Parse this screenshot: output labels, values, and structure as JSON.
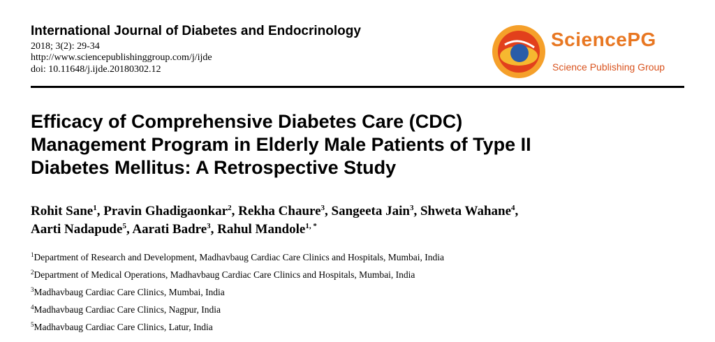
{
  "journal": {
    "title": "International Journal of Diabetes and Endocrinology",
    "issue": "2018; 3(2): 29-34",
    "url": "http://www.sciencepublishinggroup.com/j/ijde",
    "doi": "doi: 10.11648/j.ijde.20180302.12"
  },
  "publisher": {
    "name": "SciencePG",
    "subtitle": "Science Publishing Group",
    "colors": {
      "orange": "#e87722",
      "red": "#d9531e",
      "blue": "#2a5ca8"
    }
  },
  "paper": {
    "title_lines": [
      "Efficacy of Comprehensive Diabetes Care (CDC)",
      "Management Program in Elderly Male Patients of Type II",
      "Diabetes Mellitus: A Retrospective Study"
    ]
  },
  "authors": [
    {
      "name": "Rohit Sane",
      "sup": "1",
      "sep": ", "
    },
    {
      "name": "Pravin Ghadigaonkar",
      "sup": "2",
      "sep": ", "
    },
    {
      "name": "Rekha Chaure",
      "sup": "3",
      "sep": ", "
    },
    {
      "name": "Sangeeta Jain",
      "sup": "3",
      "sep": ", "
    },
    {
      "name": "Shweta Wahane",
      "sup": "4",
      "sep": ","
    },
    {
      "name": "Aarti Nadapude",
      "sup": "5",
      "sep": ", "
    },
    {
      "name": "Aarati Badre",
      "sup": "3",
      "sep": ", "
    },
    {
      "name": "Rahul Mandole",
      "sup": "1, *",
      "sep": ""
    }
  ],
  "affiliations": [
    {
      "sup": "1",
      "text": "Department of Research and Development, Madhavbaug Cardiac Care Clinics and Hospitals, Mumbai, India"
    },
    {
      "sup": "2",
      "text": "Department of Medical Operations, Madhavbaug Cardiac Care Clinics and Hospitals, Mumbai, India"
    },
    {
      "sup": "3",
      "text": "Madhavbaug Cardiac Care Clinics, Mumbai, India"
    },
    {
      "sup": "4",
      "text": "Madhavbaug Cardiac Care Clinics, Nagpur, India"
    },
    {
      "sup": "5",
      "text": "Madhavbaug Cardiac Care Clinics, Latur, India"
    }
  ]
}
